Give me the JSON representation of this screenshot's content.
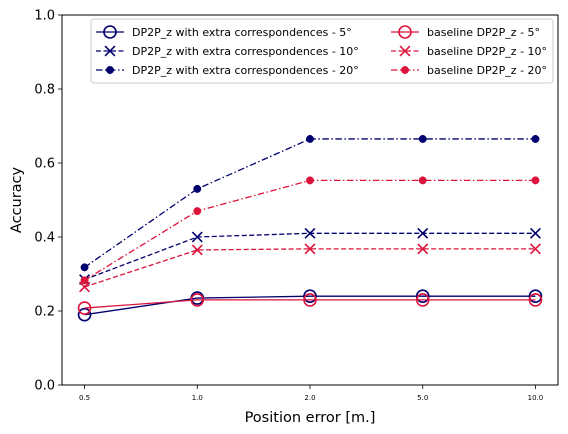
{
  "chart_data": {
    "type": "line",
    "xlabel": "Position error [m.]",
    "ylabel": "Accuracy",
    "categories": [
      "0.5",
      "1.0",
      "2.0",
      "5.0",
      "10.0"
    ],
    "ylim": [
      0,
      1
    ],
    "yticks": [
      "0.0",
      "0.2",
      "0.4",
      "0.6",
      "0.8",
      "1.0"
    ],
    "grid": false,
    "legend": {
      "placement": "top-right",
      "columns": 2
    },
    "series": [
      {
        "name": "DP2P_z with extra correspondences - 5°",
        "color": "#00006e",
        "dash": "solid",
        "marker": "open-circle",
        "values": [
          0.19,
          0.235,
          0.24,
          0.24,
          0.24
        ]
      },
      {
        "name": "DP2P_z with extra correspondences - 10°",
        "color": "#00006e",
        "dash": "dashed",
        "marker": "x",
        "values": [
          0.285,
          0.4,
          0.41,
          0.41,
          0.41
        ]
      },
      {
        "name": "DP2P_z with extra correspondences - 20°",
        "color": "#00006e",
        "dash": "dashdot",
        "marker": "dot",
        "values": [
          0.318,
          0.53,
          0.665,
          0.665,
          0.665
        ]
      },
      {
        "name": "baseline DP2P_z - 5°",
        "color": "#dc143c",
        "dash": "solid",
        "marker": "open-circle",
        "values": [
          0.208,
          0.23,
          0.23,
          0.23,
          0.23
        ]
      },
      {
        "name": "baseline DP2P_z - 10°",
        "color": "#dc143c",
        "dash": "dashed",
        "marker": "x",
        "values": [
          0.265,
          0.365,
          0.368,
          0.368,
          0.368
        ]
      },
      {
        "name": "baseline DP2P_z - 20°",
        "color": "#dc143c",
        "dash": "dashdot",
        "marker": "dot",
        "values": [
          0.283,
          0.47,
          0.553,
          0.553,
          0.553
        ]
      }
    ]
  }
}
